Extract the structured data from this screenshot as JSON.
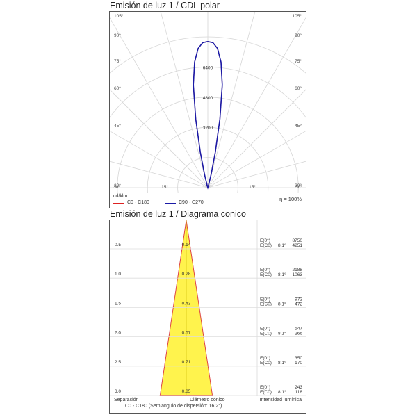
{
  "polar": {
    "title": "Emisión de luz 1 / CDL polar",
    "unit_label": "cd/klm",
    "efficiency": "η = 100%",
    "legend": [
      {
        "label": "C0 - C180",
        "color": "#dd2222"
      },
      {
        "label": "C90 - C270",
        "color": "#1a1aa6"
      }
    ]
  },
  "cone": {
    "title": "Emisión de luz 1 / Diagrama conico",
    "col_separation": "Separación",
    "col_diameter": "Diámetro cónico",
    "col_intensity": "Intensidad lumínica",
    "legend_label": "C0 - C180 (Semiángulo de dispersión: 16.2°)",
    "legend_color": "#dd4444",
    "fill_color": "#fff34d"
  },
  "chart_data": [
    {
      "type": "line",
      "subtype": "polar",
      "angle_labels_left": [
        "105°",
        "90°",
        "75°",
        "60°",
        "45°",
        "30°"
      ],
      "angle_labels_right": [
        "105°",
        "90°",
        "75°",
        "60°",
        "45°",
        "30°"
      ],
      "angle_labels_bottom": [
        "30°",
        "15°",
        "0°",
        "15°",
        "30°"
      ],
      "radial_labels": [
        "3200",
        "4800",
        "6400"
      ],
      "rmax": 8000,
      "series": [
        {
          "name": "C0 - C180",
          "angles": [
            0,
            2,
            4,
            6,
            8,
            10,
            12,
            14,
            16,
            18,
            20
          ],
          "values": [
            7750,
            7700,
            7400,
            6700,
            5500,
            3700,
            1900,
            700,
            180,
            40,
            0
          ]
        },
        {
          "name": "C90 - C270",
          "angles": [
            0,
            2,
            4,
            6,
            8,
            10,
            12,
            14,
            16,
            18,
            20
          ],
          "values": [
            7750,
            7700,
            7400,
            6700,
            5500,
            3700,
            1900,
            700,
            180,
            40,
            0
          ]
        }
      ]
    },
    {
      "type": "area",
      "subtype": "cone",
      "half_angle_deg": 16.2,
      "rows": [
        {
          "distance": "0.5",
          "diameter": "0.14",
          "e0_label": "E(0°)",
          "ec0_label": "E(C0)",
          "angle": "8.1°",
          "e0": "8750",
          "ec0": "4251"
        },
        {
          "distance": "1.0",
          "diameter": "0.28",
          "e0_label": "E(0°)",
          "ec0_label": "E(C0)",
          "angle": "8.1°",
          "e0": "2188",
          "ec0": "1063"
        },
        {
          "distance": "1.5",
          "diameter": "0.43",
          "e0_label": "E(0°)",
          "ec0_label": "E(C0)",
          "angle": "8.1°",
          "e0": "972",
          "ec0": "472"
        },
        {
          "distance": "2.0",
          "diameter": "0.57",
          "e0_label": "E(0°)",
          "ec0_label": "E(C0)",
          "angle": "8.1°",
          "e0": "547",
          "ec0": "266"
        },
        {
          "distance": "2.5",
          "diameter": "0.71",
          "e0_label": "E(0°)",
          "ec0_label": "E(C0)",
          "angle": "8.1°",
          "e0": "350",
          "ec0": "170"
        },
        {
          "distance": "3.0",
          "diameter": "0.85",
          "e0_label": "E(0°)",
          "ec0_label": "E(C0)",
          "angle": "8.1°",
          "e0": "243",
          "ec0": "118"
        }
      ]
    }
  ]
}
